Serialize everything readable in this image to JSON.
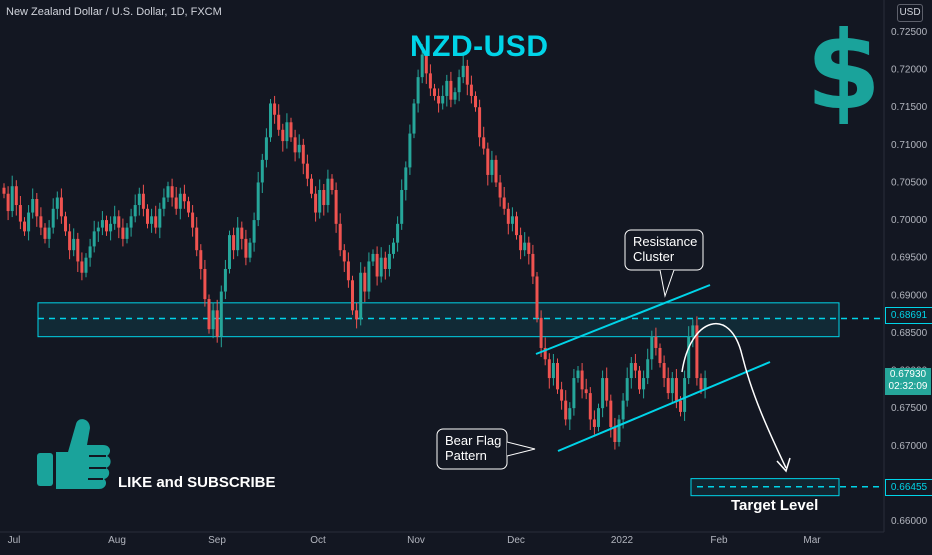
{
  "header": {
    "symbol_info": "New Zealand Dollar / U.S. Dollar, 1D, FXCM",
    "currency_badge": "USD"
  },
  "chart_data": {
    "type": "candlestick",
    "title": "NZD-USD",
    "ylim": [
      0.659,
      0.7255
    ],
    "y_ticks": [
      "0.72500",
      "0.72000",
      "0.71500",
      "0.71000",
      "0.70500",
      "0.70000",
      "0.69500",
      "0.69000",
      "0.68500",
      "0.68000",
      "0.67500",
      "0.67000",
      "0.66500",
      "0.66000"
    ],
    "x_ticks": [
      "Jul",
      "Aug",
      "Sep",
      "Oct",
      "Nov",
      "Dec",
      "2022",
      "Feb",
      "Mar"
    ],
    "last_price": "0.67930",
    "countdown": "02:32:09",
    "resistance_level": "0.68691",
    "target_price": "0.66455",
    "closes": [
      0.7035,
      0.7012,
      0.7045,
      0.702,
      0.6998,
      0.6985,
      0.701,
      0.7028,
      0.7005,
      0.699,
      0.6975,
      0.699,
      0.7015,
      0.703,
      0.7005,
      0.6985,
      0.696,
      0.6975,
      0.6945,
      0.693,
      0.695,
      0.6965,
      0.6985,
      0.699,
      0.7,
      0.6985,
      0.6995,
      0.7005,
      0.699,
      0.6975,
      0.699,
      0.7005,
      0.702,
      0.7035,
      0.7015,
      0.6995,
      0.7005,
      0.699,
      0.7015,
      0.703,
      0.7045,
      0.703,
      0.7015,
      0.7035,
      0.7025,
      0.701,
      0.699,
      0.696,
      0.6935,
      0.6895,
      0.6855,
      0.688,
      0.6845,
      0.6905,
      0.6935,
      0.698,
      0.696,
      0.699,
      0.6975,
      0.695,
      0.697,
      0.7,
      0.705,
      0.708,
      0.711,
      0.7155,
      0.714,
      0.712,
      0.7105,
      0.713,
      0.711,
      0.709,
      0.71,
      0.7075,
      0.7055,
      0.7035,
      0.701,
      0.704,
      0.702,
      0.7055,
      0.704,
      0.6995,
      0.696,
      0.6945,
      0.692,
      0.688,
      0.6868,
      0.693,
      0.6905,
      0.6945,
      0.6955,
      0.6925,
      0.695,
      0.6935,
      0.6955,
      0.697,
      0.6995,
      0.704,
      0.707,
      0.7115,
      0.7155,
      0.719,
      0.722,
      0.7195,
      0.7175,
      0.7165,
      0.7155,
      0.7165,
      0.7185,
      0.716,
      0.717,
      0.719,
      0.7205,
      0.718,
      0.7165,
      0.715,
      0.711,
      0.7095,
      0.706,
      0.708,
      0.705,
      0.703,
      0.7015,
      0.6995,
      0.7005,
      0.698,
      0.696,
      0.697,
      0.6955,
      0.6925,
      0.687,
      0.683,
      0.6815,
      0.679,
      0.681,
      0.6775,
      0.676,
      0.6735,
      0.675,
      0.679,
      0.68,
      0.6775,
      0.677,
      0.6735,
      0.6725,
      0.675,
      0.679,
      0.676,
      0.6725,
      0.6705,
      0.6735,
      0.676,
      0.679,
      0.681,
      0.68,
      0.6775,
      0.679,
      0.6815,
      0.6845,
      0.683,
      0.681,
      0.679,
      0.677,
      0.679,
      0.676,
      0.6745,
      0.679,
      0.6845,
      0.686,
      0.679,
      0.6775,
      0.679
    ],
    "overlays": {
      "resistance_zone": [
        0.6845,
        0.689
      ],
      "target_zone": [
        0.6635,
        0.6655
      ]
    }
  },
  "annotations": {
    "resistance_cluster": "Resistance\nCluster",
    "bear_flag": "Bear Flag\nPattern",
    "target_level": "Target Level",
    "like_subscribe": "LIKE and SUBSCRIBE",
    "dollar_sign": "$"
  },
  "colors": {
    "background": "#131722",
    "up": "#26a69a",
    "down": "#ef5350",
    "accent": "#00d4e8",
    "thumb": "#1aa39b"
  },
  "icons": {
    "thumb": "thumbs-up-icon",
    "dollar": "dollar-icon"
  }
}
